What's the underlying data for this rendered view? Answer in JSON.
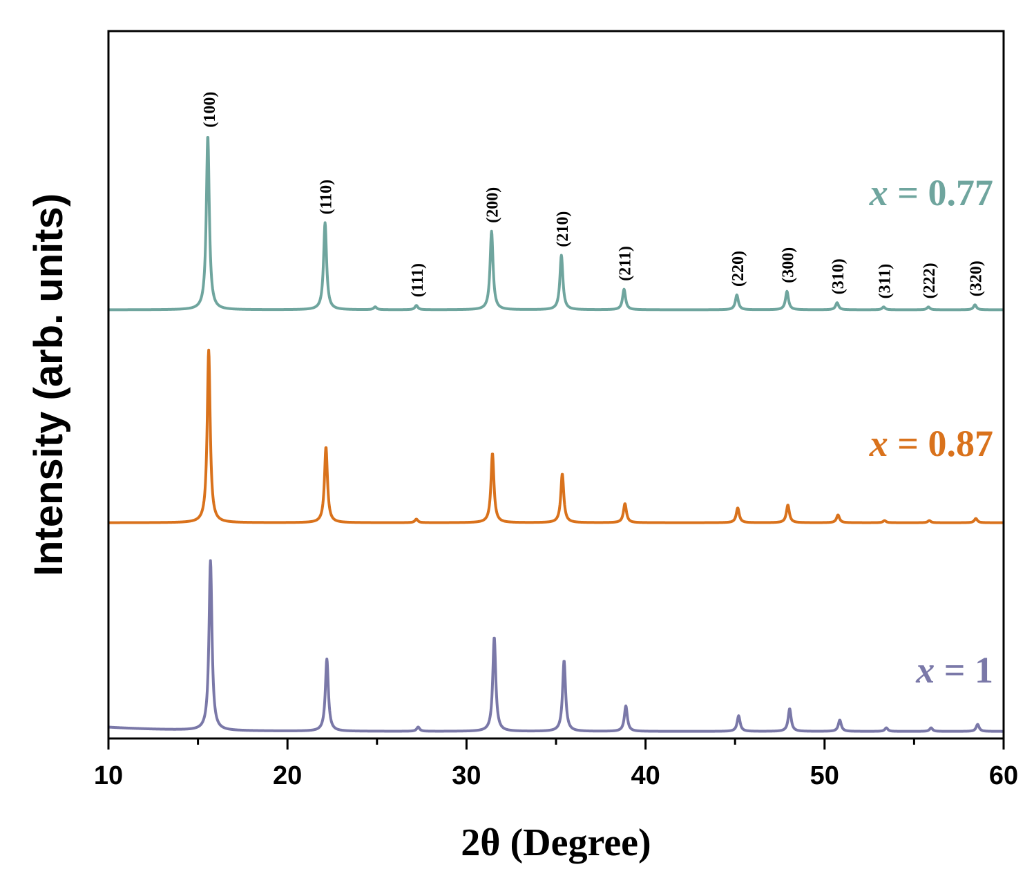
{
  "chart_data": {
    "type": "line",
    "title": "",
    "xlabel": "2θ (Degree)",
    "ylabel": "Intensity (arb. units)",
    "xlim": [
      10,
      60
    ],
    "xticks": [
      10,
      20,
      30,
      40,
      50,
      60
    ],
    "xtick_labels": [
      "10",
      "20",
      "30",
      "40",
      "50",
      "60"
    ],
    "ylim": [
      0,
      1
    ],
    "yticks": [],
    "grid": false,
    "peaks": [
      {
        "label": "(100)",
        "two_theta": 15.6
      },
      {
        "label": "(110)",
        "two_theta": 22.1
      },
      {
        "label": "(111)",
        "two_theta": 27.2
      },
      {
        "label": "(200)",
        "two_theta": 31.4
      },
      {
        "label": "(210)",
        "two_theta": 35.3
      },
      {
        "label": "(211)",
        "two_theta": 38.8
      },
      {
        "label": "(220)",
        "two_theta": 45.1
      },
      {
        "label": "(300)",
        "two_theta": 47.9
      },
      {
        "label": "(310)",
        "two_theta": 50.7
      },
      {
        "label": "(311)",
        "two_theta": 53.3
      },
      {
        "label": "(222)",
        "two_theta": 55.8
      },
      {
        "label": "(320)",
        "two_theta": 58.4
      }
    ],
    "series": [
      {
        "name": "x = 0.77",
        "label_var": "x",
        "label_rest": " = 0.77",
        "color": "#6fa59e",
        "baseline": 0.606,
        "peaks": [
          {
            "x": 15.55,
            "h": 0.246
          },
          {
            "x": 22.1,
            "h": 0.123
          },
          {
            "x": 24.9,
            "h": 0.004
          },
          {
            "x": 27.2,
            "h": 0.006
          },
          {
            "x": 31.4,
            "h": 0.111
          },
          {
            "x": 35.3,
            "h": 0.077
          },
          {
            "x": 38.8,
            "h": 0.029
          },
          {
            "x": 45.1,
            "h": 0.021
          },
          {
            "x": 47.9,
            "h": 0.026
          },
          {
            "x": 50.7,
            "h": 0.01
          },
          {
            "x": 53.3,
            "h": 0.004
          },
          {
            "x": 55.8,
            "h": 0.004
          },
          {
            "x": 58.4,
            "h": 0.007
          }
        ]
      },
      {
        "name": "x = 0.87",
        "label_var": "x",
        "label_rest": " = 0.87",
        "color": "#d9721c",
        "baseline": 0.305,
        "peaks": [
          {
            "x": 15.6,
            "h": 0.244
          },
          {
            "x": 22.15,
            "h": 0.107
          },
          {
            "x": 27.2,
            "h": 0.005
          },
          {
            "x": 31.45,
            "h": 0.098
          },
          {
            "x": 35.35,
            "h": 0.069
          },
          {
            "x": 38.85,
            "h": 0.027
          },
          {
            "x": 45.15,
            "h": 0.021
          },
          {
            "x": 47.95,
            "h": 0.025
          },
          {
            "x": 50.75,
            "h": 0.011
          },
          {
            "x": 53.35,
            "h": 0.003
          },
          {
            "x": 55.85,
            "h": 0.003
          },
          {
            "x": 58.45,
            "h": 0.006
          }
        ]
      },
      {
        "name": "x = 1",
        "label_var": "x",
        "label_rest": " = 1",
        "color": "#7a78a8",
        "baseline": 0.01,
        "peaks": [
          {
            "x": 15.7,
            "h": 0.24
          },
          {
            "x": 22.2,
            "h": 0.102
          },
          {
            "x": 27.3,
            "h": 0.006
          },
          {
            "x": 31.55,
            "h": 0.133
          },
          {
            "x": 35.45,
            "h": 0.1
          },
          {
            "x": 38.9,
            "h": 0.036
          },
          {
            "x": 45.2,
            "h": 0.022
          },
          {
            "x": 48.05,
            "h": 0.032
          },
          {
            "x": 50.85,
            "h": 0.016
          },
          {
            "x": 53.45,
            "h": 0.005
          },
          {
            "x": 55.95,
            "h": 0.005
          },
          {
            "x": 58.55,
            "h": 0.01
          }
        ]
      }
    ]
  }
}
